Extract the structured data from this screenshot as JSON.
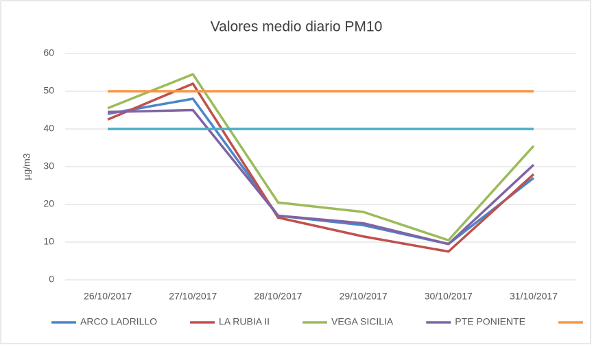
{
  "chart_data": {
    "type": "line",
    "title": "Valores medio diario PM10",
    "y_label": "µg/m3",
    "categories": [
      "26/10/2017",
      "27/10/2017",
      "28/10/2017",
      "29/10/2017",
      "30/10/2017",
      "31/10/2017"
    ],
    "series": [
      {
        "name": "ARCO LADRILLO",
        "color": "#4a86c8",
        "values": [
          44,
          48,
          17,
          14.5,
          9.5,
          27
        ]
      },
      {
        "name": "LA RUBIA II",
        "color": "#c0504d",
        "values": [
          42.5,
          52,
          16.5,
          11.5,
          7.5,
          28
        ]
      },
      {
        "name": "VEGA SICILIA",
        "color": "#9bbb59",
        "values": [
          45.5,
          54.5,
          20.5,
          18,
          10.5,
          35.5
        ]
      },
      {
        "name": "PTE PONIENTE",
        "color": "#8064a2",
        "values": [
          44.5,
          45,
          17,
          15,
          9.5,
          30.5
        ]
      },
      {
        "color": "#f79646",
        "values": [
          50,
          50,
          50,
          50,
          50,
          50
        ]
      },
      {
        "color": "#4bacc6",
        "values": [
          40,
          40,
          40,
          40,
          40,
          40
        ],
        "legend": false
      }
    ],
    "ylim": [
      0,
      60
    ],
    "yticks": [
      0,
      10,
      20,
      30,
      40,
      50,
      60
    ],
    "grid": true,
    "legend": "bottom"
  }
}
